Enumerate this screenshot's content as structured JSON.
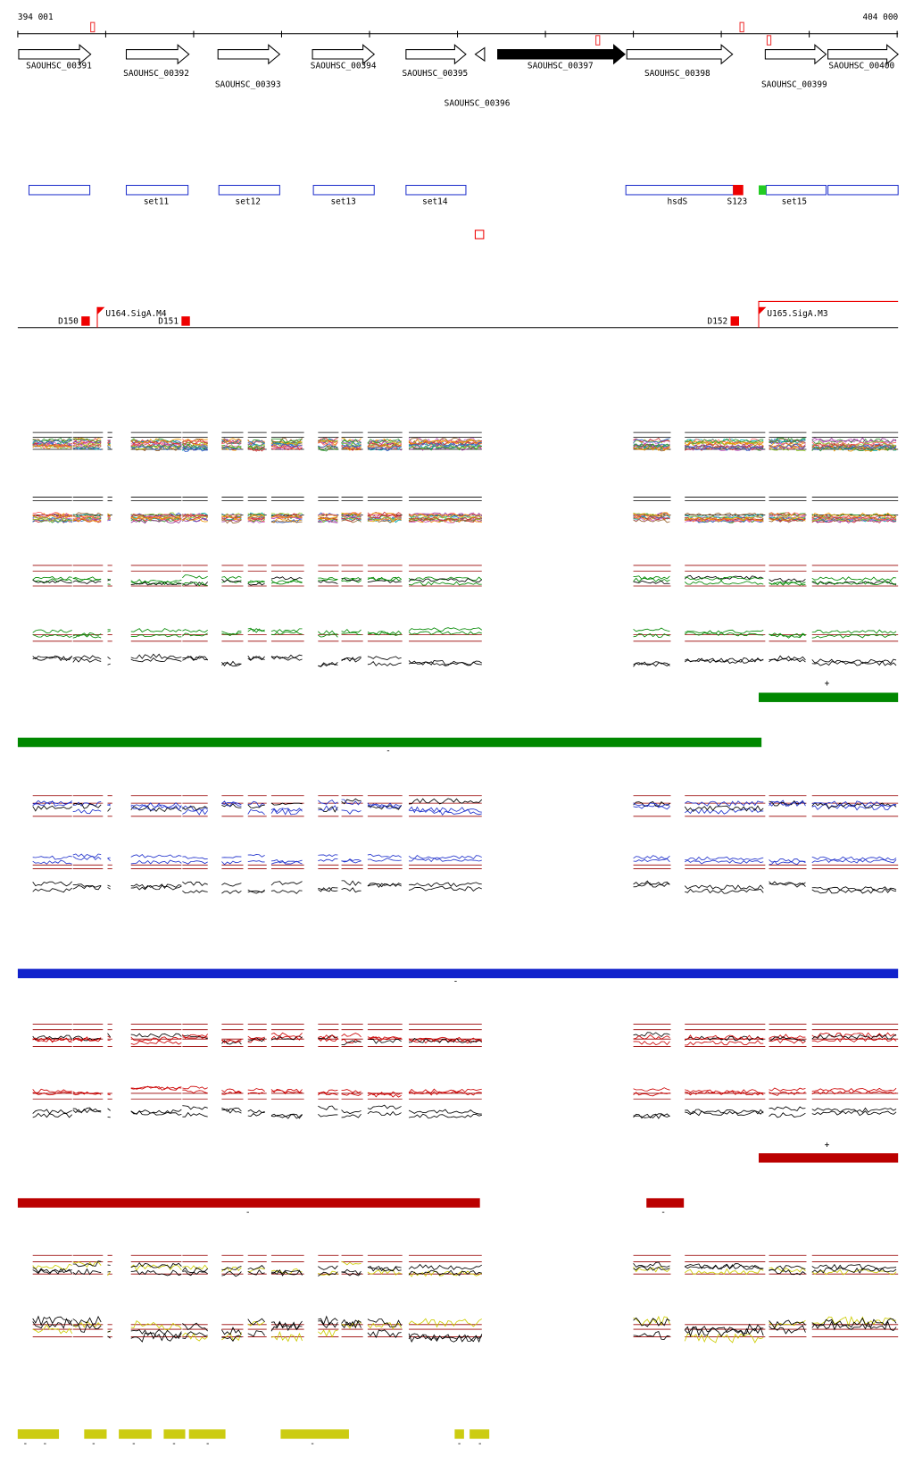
{
  "header": {
    "start": "394 001",
    "end": "404 000"
  },
  "genes": [
    {
      "label": "SAOUHSC_00391"
    },
    {
      "label": "SAOUHSC_00392"
    },
    {
      "label": "SAOUHSC_00393"
    },
    {
      "label": "SAOUHSC_00394"
    },
    {
      "label": "SAOUHSC_00395"
    },
    {
      "label": "SAOUHSC_00396"
    },
    {
      "label": "SAOUHSC_00397"
    },
    {
      "label": "SAOUHSC_00398"
    },
    {
      "label": "SAOUHSC_00399"
    },
    {
      "label": "SAOUHSC_00400"
    }
  ],
  "sets": [
    {
      "label": "set11"
    },
    {
      "label": "set12"
    },
    {
      "label": "set13"
    },
    {
      "label": "set14"
    },
    {
      "label": "hsdS"
    },
    {
      "label": "S123"
    },
    {
      "label": "set15"
    }
  ],
  "primers": [
    {
      "label": "D150"
    },
    {
      "label": "U164.SigA.M4"
    },
    {
      "label": "D151"
    },
    {
      "label": "D152"
    },
    {
      "label": "U165.SigA.M3"
    }
  ],
  "strand_marks": [
    "+",
    "-",
    "-",
    "+",
    "-",
    "-",
    "-",
    "-",
    "-",
    "-",
    "-",
    "-",
    "-",
    "-",
    "-"
  ]
}
